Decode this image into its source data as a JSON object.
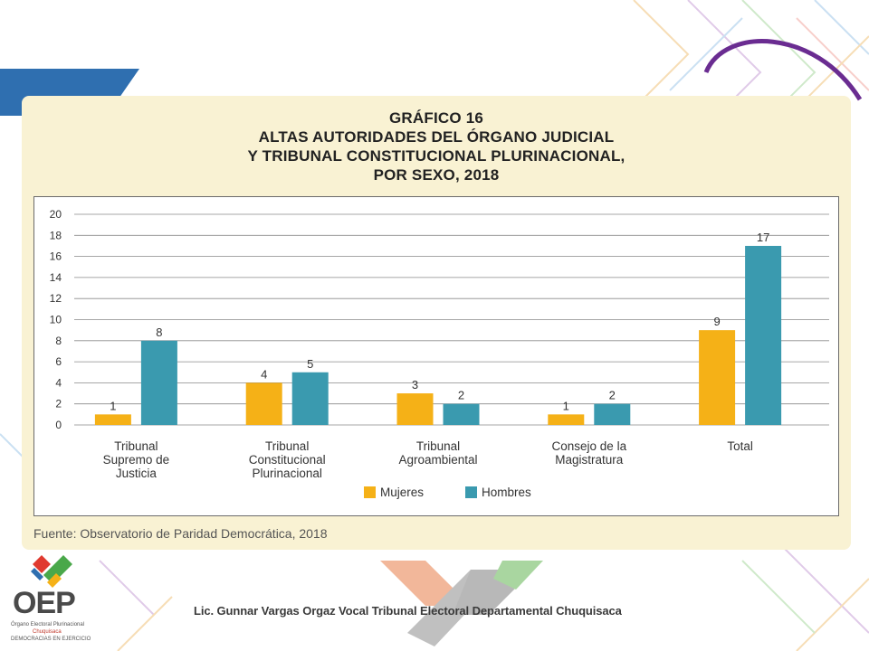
{
  "title_lines": [
    "GRÁFICO 16",
    "ALTAS AUTORIDADES DEL ÓRGANO JUDICIAL",
    "Y TRIBUNAL CONSTITUCIONAL PLURINACIONAL,",
    "POR SEXO, 2018"
  ],
  "source": "Fuente: Observatorio de Paridad Democrática, 2018",
  "footer": "Lic. Gunnar Vargas Orgaz Vocal Tribunal Electoral Departamental Chuquisaca",
  "logo": {
    "word": "OEP",
    "line1": "Órgano Electoral Plurinacional",
    "line2": "Chuquisaca",
    "line3": "DEMOCRACIAS EN EJERCICIO"
  },
  "colors": {
    "mujeres": "#f5b117",
    "hombres": "#3a9aaf",
    "grid": "#8a8a8a",
    "accent_blue": "#2f6fb0",
    "accent_purple": "#6a2c91"
  },
  "chart_data": {
    "type": "bar",
    "categories": [
      [
        "Tribunal",
        "Supremo de",
        "Justicia"
      ],
      [
        "Tribunal",
        "Constitucional",
        "Plurinacional"
      ],
      [
        "Tribunal",
        "Agroambiental"
      ],
      [
        "Consejo de la",
        "Magistratura"
      ],
      [
        "Total"
      ]
    ],
    "series": [
      {
        "name": "Mujeres",
        "values": [
          1,
          4,
          3,
          1,
          9
        ]
      },
      {
        "name": "Hombres",
        "values": [
          8,
          5,
          2,
          2,
          17
        ]
      }
    ],
    "ylim": [
      0,
      20
    ],
    "yticks": [
      0,
      2,
      4,
      6,
      8,
      10,
      12,
      14,
      16,
      18,
      20
    ],
    "grid": true,
    "legend": "bottom-center",
    "data_labels": true
  }
}
